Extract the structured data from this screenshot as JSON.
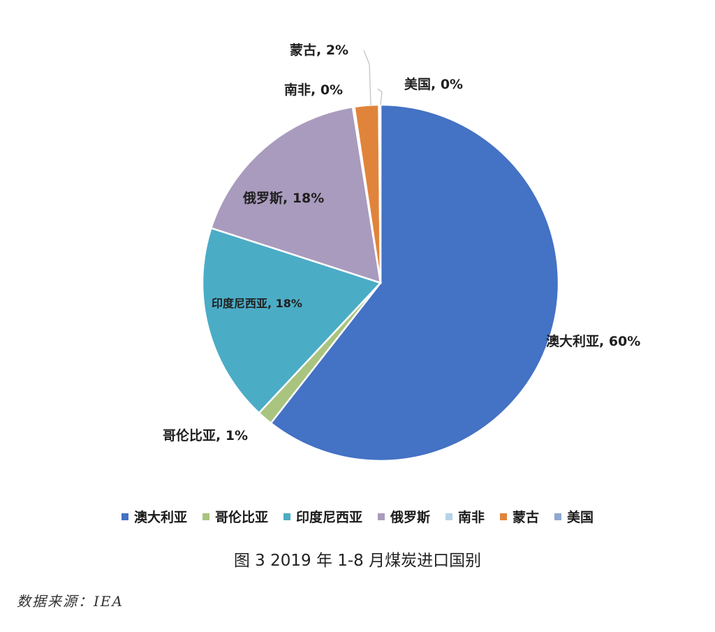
{
  "chart_data": {
    "type": "pie",
    "slices": [
      {
        "name": "澳大利亚",
        "value": 60,
        "label": "澳大利亚, 60%",
        "color": "#4472C4"
      },
      {
        "name": "哥伦比亚",
        "value": 1,
        "label": "哥伦比亚, 1%",
        "color": "#A9C47F"
      },
      {
        "name": "印度尼西亚",
        "value": 18,
        "label": "印度尼西亚, 18%",
        "color": "#4BACC6"
      },
      {
        "name": "俄罗斯",
        "value": 18,
        "label": "俄罗斯, 18%",
        "color": "#A99BBD"
      },
      {
        "name": "南非",
        "value": 0,
        "label": "南非, 0%",
        "color": "#B7D3E8"
      },
      {
        "name": "蒙古",
        "value": 2,
        "label": "蒙古, 2%",
        "color": "#E0843B"
      },
      {
        "name": "美国",
        "value": 0,
        "label": "美国, 0%",
        "color": "#8EA9D1"
      }
    ],
    "legend_position": "bottom",
    "start_angle_deg": 0,
    "direction": "clockwise"
  },
  "caption": "图 3 2019 年 1-8 月煤炭进口国别",
  "source": "数据来源：IEA"
}
